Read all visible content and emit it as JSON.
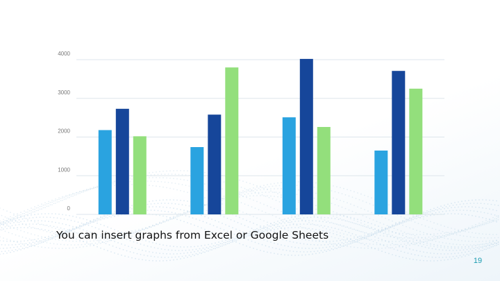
{
  "slide": {
    "caption": "You can insert graphs from Excel or Google Sheets",
    "page_number": "19",
    "page_number_color": "#1a9bb0"
  },
  "colors": {
    "series": [
      "#2aa3e0",
      "#16469a",
      "#93df7c"
    ],
    "gridline": "#dde6ec",
    "decor_dots": "#b9d3e6"
  },
  "chart_data": {
    "type": "bar",
    "categories": [
      "",
      "",
      "",
      ""
    ],
    "series": [
      {
        "values": [
          2180,
          1740,
          2510,
          1650
        ]
      },
      {
        "values": [
          2730,
          2580,
          4020,
          3710
        ]
      },
      {
        "values": [
          2020,
          3800,
          2260,
          3250
        ]
      }
    ],
    "yticks": [
      0,
      1000,
      2000,
      3000,
      4000
    ],
    "ylim": [
      0,
      4000
    ],
    "grid": true,
    "legend": "none",
    "title": "",
    "xlabel": "",
    "ylabel": ""
  }
}
